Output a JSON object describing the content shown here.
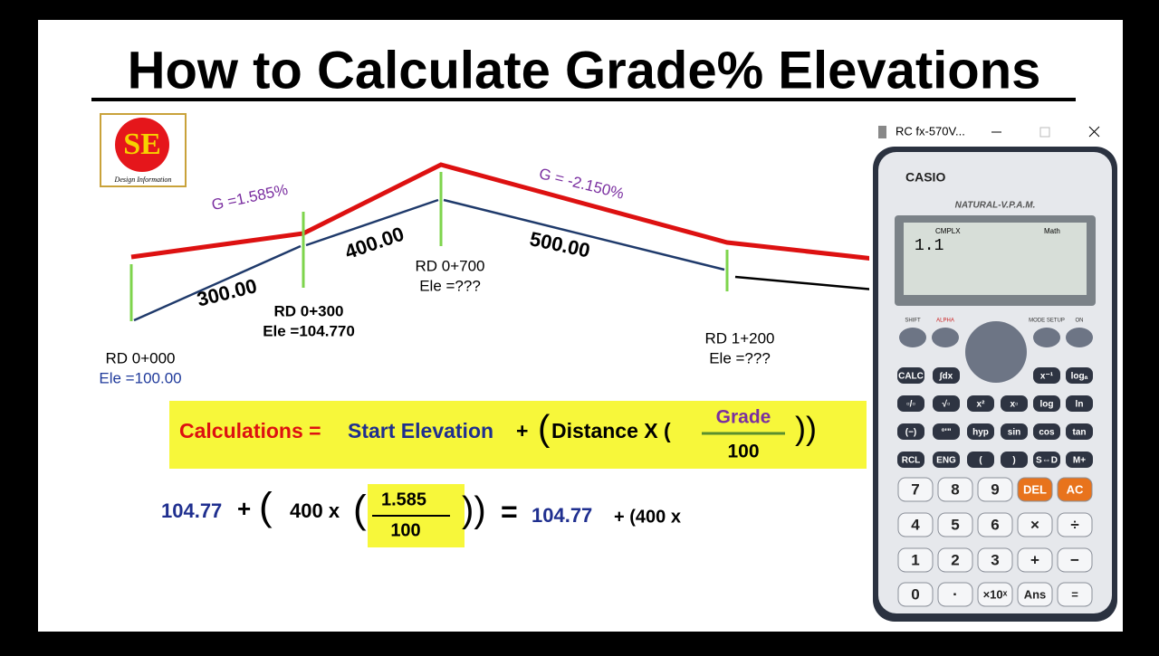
{
  "title": "How to Calculate Grade% Elevations",
  "logo": {
    "text": "SE",
    "caption": "Design Information"
  },
  "diagram": {
    "grades": [
      "G =1.585%",
      "G = -2.150%"
    ],
    "distances": [
      "300.00",
      "400.00",
      "500.00"
    ],
    "stations": [
      {
        "rd": "RD 0+000",
        "ele": "Ele =100.00"
      },
      {
        "rd": "RD 0+300",
        "ele": "Ele =104.770"
      },
      {
        "rd": "RD 0+700",
        "ele": "Ele =???"
      },
      {
        "rd": "RD 1+200",
        "ele": "Ele =???"
      }
    ]
  },
  "formula": {
    "calculations": "Calculations =",
    "start": "Start Elevation",
    "plus": "+",
    "open": "(",
    "distance": "Distance X (",
    "grade": "Grade",
    "hundred": "100",
    "close": "))"
  },
  "example": {
    "start": "104.77",
    "plus": "+",
    "open": "(",
    "distance": "400 x",
    "open2": "(",
    "grade": "1.585",
    "hundred": "100",
    "close": "))",
    "equals": "=",
    "result": "104.77",
    "tail": "+ (400 x"
  },
  "calculator": {
    "window_title": "RC fx-570V...",
    "brand": "CASIO",
    "model": "NATURAL-V.P.A.M.",
    "display_flags": [
      "CMPLX",
      "Math"
    ],
    "display_input": "1.1",
    "top_labels": [
      "SHIFT",
      "ALPHA",
      "MODE SETUP",
      "ON"
    ],
    "function_rows": [
      [
        "CALC",
        "∫dx",
        "x⁻¹",
        "logₐ"
      ],
      [
        "▫/▫",
        "√▫",
        "x²",
        "x▫",
        "log",
        "ln"
      ],
      [
        "(−)",
        "°'\"",
        "hyp",
        "sin",
        "cos",
        "tan"
      ],
      [
        "RCL",
        "ENG",
        "(",
        ")",
        "S⇔D",
        "M+"
      ]
    ],
    "main_rows": [
      [
        "7",
        "8",
        "9",
        "DEL",
        "AC"
      ],
      [
        "4",
        "5",
        "6",
        "×",
        "÷"
      ],
      [
        "1",
        "2",
        "3",
        "+",
        "−"
      ],
      [
        "0",
        "·",
        "×10ˣ",
        "Ans",
        "="
      ]
    ]
  }
}
